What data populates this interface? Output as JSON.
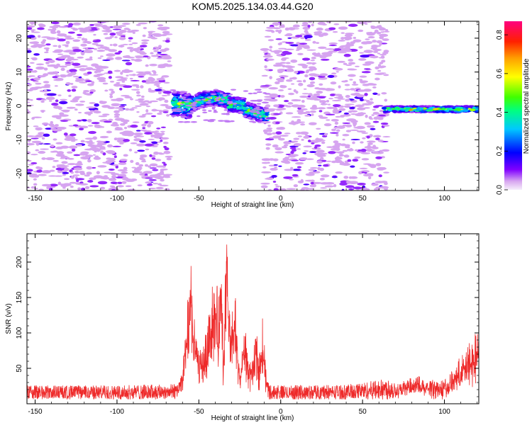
{
  "title": "KOM5.2025.134.03.44.G20",
  "chart_data": [
    {
      "type": "heatmap",
      "title": "KOM5.2025.134.03.44.G20",
      "xlabel": "Height of straight line (km)",
      "ylabel": "Frequency (Hz)",
      "xlim": [
        -155,
        121
      ],
      "ylim": [
        -25,
        25
      ],
      "xticks": [
        -150,
        -100,
        -50,
        0,
        50,
        100
      ],
      "yticks": [
        -20,
        -10,
        0,
        10,
        20
      ],
      "grid": false,
      "colorbar": {
        "label": "Normalized spectral amplitude",
        "range": [
          0.0,
          0.87
        ],
        "ticks": [
          "0.0",
          "0.2",
          "0.4",
          "0.6",
          "0.8"
        ],
        "palette": [
          "#d8a8f0",
          "#8000ff",
          "#0000ff",
          "#00c8ff",
          "#00ff80",
          "#40ff00",
          "#ffff00",
          "#ffa000",
          "#ff2000",
          "#ff0080"
        ]
      },
      "features": [
        {
          "name": "noise speckle left",
          "x_range": [
            -155,
            -68
          ],
          "f_range": [
            -25,
            25
          ],
          "amplitude": 0.05
        },
        {
          "name": "strong echo",
          "x_range": [
            -66,
            -8
          ],
          "f_range": [
            -4,
            4
          ],
          "amplitude": 0.6
        },
        {
          "name": "noise speckle middle",
          "x_range": [
            -10,
            65
          ],
          "f_range": [
            -25,
            25
          ],
          "amplitude": 0.06
        },
        {
          "name": "narrow trace right",
          "x_range": [
            63,
            121
          ],
          "f_center": -1,
          "amplitude": 0.7
        }
      ]
    },
    {
      "type": "line",
      "xlabel": "Height of straight line (km)",
      "ylabel": "SNR (v/v)",
      "xlim": [
        -155,
        121
      ],
      "ylim": [
        0,
        240
      ],
      "xticks": [
        -150,
        -100,
        -50,
        0,
        50,
        100
      ],
      "yticks": [
        50,
        100,
        150,
        200
      ],
      "grid": false,
      "line_color": "#ee2a2a",
      "series": [
        {
          "x": [
            -155,
            -100,
            -65,
            -60,
            -57,
            -55,
            -53,
            -50,
            -46,
            -43,
            -40,
            -38,
            -36,
            -35,
            -34,
            -33,
            -32,
            -30,
            -28,
            -25,
            -22,
            -20,
            -17,
            -15,
            -13,
            -11,
            -9,
            -7,
            0,
            40,
            70,
            80,
            85,
            90,
            95,
            100,
            105,
            110,
            115,
            121
          ],
          "y": [
            14,
            14,
            16,
            40,
            120,
            170,
            110,
            60,
            80,
            140,
            160,
            120,
            200,
            60,
            150,
            230,
            140,
            100,
            140,
            40,
            100,
            60,
            50,
            90,
            60,
            110,
            40,
            15,
            14,
            15,
            25,
            30,
            34,
            26,
            20,
            22,
            40,
            55,
            70,
            90
          ]
        }
      ]
    }
  ]
}
